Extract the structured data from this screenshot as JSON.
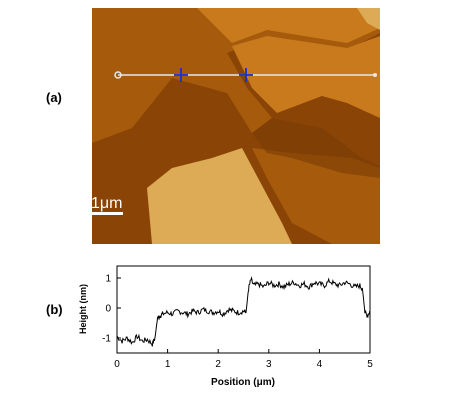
{
  "panels": {
    "a_label": "(a)",
    "b_label": "(b)"
  },
  "afm": {
    "scale_bar_label": "1μm",
    "colors": {
      "substrate": "#8a4506",
      "layer1": "#a65a0c",
      "layer2": "#c87a1c",
      "layer3": "#ddaa55",
      "line": "#e8e8e8",
      "marker": "#1a2fd0"
    }
  },
  "chart_data": {
    "type": "line",
    "title": "",
    "xlabel": "Position (μm)",
    "ylabel": "Height (nm)",
    "xlim": [
      0,
      5
    ],
    "ylim": [
      -1.5,
      1.4
    ],
    "xticks": [
      "0",
      "1",
      "2",
      "3",
      "4",
      "5"
    ],
    "yticks": [
      "-1",
      "0",
      "1"
    ],
    "grid": false,
    "series": [
      {
        "x": [
          0,
          0.1,
          0.2,
          0.3,
          0.4,
          0.5,
          0.6,
          0.7,
          0.75,
          0.8,
          0.85,
          0.9,
          1.0,
          1.1,
          1.2,
          1.3,
          1.4,
          1.5,
          1.6,
          1.7,
          1.8,
          1.9,
          2.0,
          2.1,
          2.2,
          2.3,
          2.4,
          2.5,
          2.55,
          2.6,
          2.65,
          2.7,
          2.8,
          2.9,
          3.0,
          3.1,
          3.2,
          3.3,
          3.4,
          3.5,
          3.6,
          3.7,
          3.8,
          3.9,
          4.0,
          4.1,
          4.2,
          4.3,
          4.4,
          4.5,
          4.6,
          4.7,
          4.8,
          4.85,
          4.9,
          4.95,
          5.0
        ],
        "values": [
          -0.95,
          -1.1,
          -1.0,
          -1.15,
          -0.95,
          -1.1,
          -1.05,
          -1.2,
          -1.0,
          -0.35,
          -0.25,
          -0.2,
          -0.15,
          -0.2,
          -0.1,
          -0.15,
          -0.2,
          -0.1,
          -0.15,
          -0.05,
          -0.1,
          -0.15,
          -0.1,
          -0.2,
          -0.05,
          -0.1,
          -0.15,
          -0.1,
          -0.15,
          0.65,
          0.95,
          0.75,
          0.8,
          0.7,
          0.85,
          0.75,
          0.8,
          0.7,
          0.8,
          0.85,
          0.75,
          0.8,
          0.7,
          0.85,
          0.8,
          0.75,
          0.9,
          0.8,
          0.75,
          0.85,
          0.8,
          0.7,
          0.75,
          0.65,
          -0.15,
          -0.25,
          -0.1
        ]
      }
    ]
  }
}
